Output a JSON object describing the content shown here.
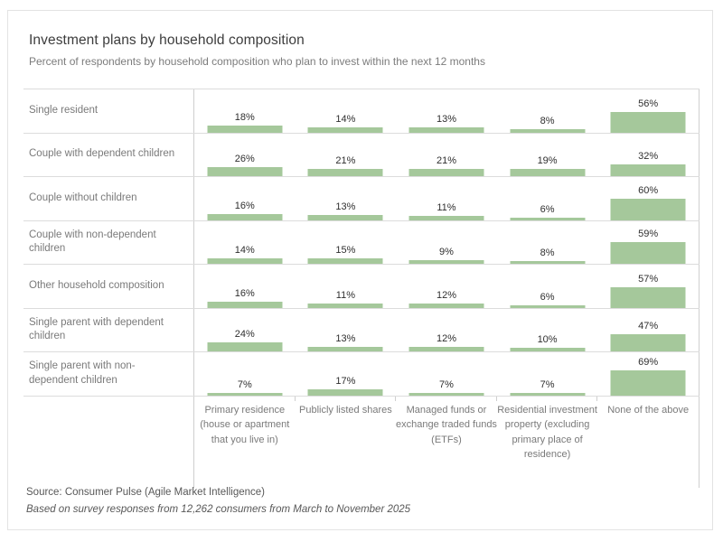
{
  "header": {
    "title": "Investment plans by household composition",
    "subtitle": "Percent of respondents by household composition who plan to invest within the next 12 months"
  },
  "chart_data": {
    "type": "bar",
    "layout": "matrix-of-bars",
    "unit": "%",
    "bar_color": "#a5c89b",
    "value_range": [
      0,
      100
    ],
    "grid": "row-separators",
    "legend": "none",
    "columns": [
      "Primary residence (house or apartment that you live in)",
      "Publicly listed shares",
      "Managed funds or exchange traded funds (ETFs)",
      "Residential investment property (excluding primary place of residence)",
      "None of the above"
    ],
    "rows": [
      "Single resident",
      "Couple with dependent children",
      "Couple without children",
      "Couple with non-dependent children",
      "Other household composition",
      "Single parent with dependent children",
      "Single parent with non-dependent children"
    ],
    "series": [
      {
        "name": "Single resident",
        "values": [
          18,
          14,
          13,
          8,
          56
        ]
      },
      {
        "name": "Couple with dependent children",
        "values": [
          26,
          21,
          21,
          19,
          32
        ]
      },
      {
        "name": "Couple without children",
        "values": [
          16,
          13,
          11,
          6,
          60
        ]
      },
      {
        "name": "Couple with non-dependent children",
        "values": [
          14,
          15,
          9,
          8,
          59
        ]
      },
      {
        "name": "Other household composition",
        "values": [
          16,
          11,
          12,
          6,
          57
        ]
      },
      {
        "name": "Single parent with dependent children",
        "values": [
          24,
          13,
          12,
          10,
          47
        ]
      },
      {
        "name": "Single parent with non-dependent children",
        "values": [
          7,
          17,
          7,
          7,
          69
        ]
      }
    ]
  },
  "footer": {
    "source": "Source: Consumer Pulse (Agile Market Intelligence)",
    "note": "Based on survey responses from 12,262 consumers from March to November 2025"
  }
}
